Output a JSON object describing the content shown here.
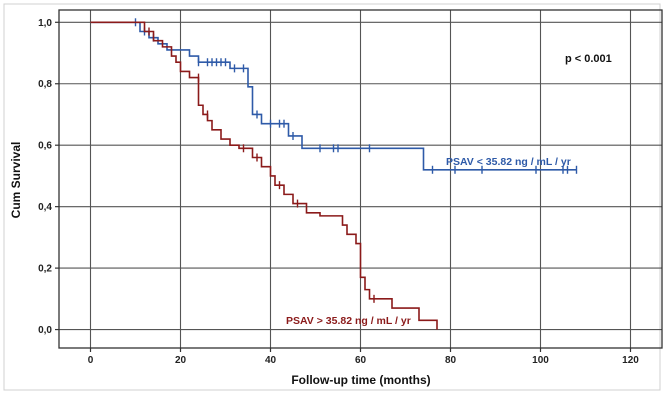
{
  "chart_data": {
    "type": "line",
    "subtype": "kaplan-meier-step",
    "xlabel": "Follow-up time (months)",
    "ylabel": "Cum Survival",
    "xlim": [
      -7,
      127
    ],
    "ylim": [
      -0.06,
      1.04
    ],
    "x_ticks": [
      0,
      20,
      40,
      60,
      80,
      100,
      120
    ],
    "x_tick_labels": [
      "0",
      "20",
      "40",
      "60",
      "80",
      "100",
      "120"
    ],
    "y_ticks": [
      0.0,
      0.2,
      0.4,
      0.6,
      0.8,
      1.0
    ],
    "y_tick_labels": [
      "0,0",
      "0,2",
      "0,4",
      "0,6",
      "0,8",
      "1,0"
    ],
    "grid": true,
    "annotation": "p < 0.001",
    "series": [
      {
        "name": "PSAV < 35.82 ng / mL / yr",
        "color": "#2e5aa8",
        "steps": [
          [
            0,
            1.0
          ],
          [
            11,
            0.97
          ],
          [
            13,
            0.95
          ],
          [
            15,
            0.93
          ],
          [
            17,
            0.91
          ],
          [
            22,
            0.89
          ],
          [
            24,
            0.87
          ],
          [
            31,
            0.85
          ],
          [
            35,
            0.79
          ],
          [
            36,
            0.7
          ],
          [
            38,
            0.67
          ],
          [
            44,
            0.63
          ],
          [
            47,
            0.59
          ],
          [
            74,
            0.52
          ],
          [
            108,
            0.52
          ]
        ],
        "censored": [
          [
            10,
            1.0
          ],
          [
            12,
            0.97
          ],
          [
            14,
            0.95
          ],
          [
            24,
            0.87
          ],
          [
            26,
            0.87
          ],
          [
            27,
            0.87
          ],
          [
            28,
            0.87
          ],
          [
            29,
            0.87
          ],
          [
            30,
            0.87
          ],
          [
            32,
            0.85
          ],
          [
            34,
            0.85
          ],
          [
            37,
            0.7
          ],
          [
            40,
            0.67
          ],
          [
            42,
            0.67
          ],
          [
            43,
            0.67
          ],
          [
            45,
            0.63
          ],
          [
            51,
            0.59
          ],
          [
            54,
            0.59
          ],
          [
            55,
            0.59
          ],
          [
            62,
            0.59
          ],
          [
            76,
            0.52
          ],
          [
            81,
            0.52
          ],
          [
            87,
            0.52
          ],
          [
            99,
            0.52
          ],
          [
            105,
            0.52
          ],
          [
            106,
            0.52
          ],
          [
            108,
            0.52
          ]
        ]
      },
      {
        "name": "PSAV > 35.82 ng / mL / yr",
        "color": "#8b1a1a",
        "steps": [
          [
            0,
            1.0
          ],
          [
            12,
            0.97
          ],
          [
            14,
            0.94
          ],
          [
            16,
            0.92
          ],
          [
            18,
            0.89
          ],
          [
            19,
            0.87
          ],
          [
            20,
            0.84
          ],
          [
            22,
            0.82
          ],
          [
            24,
            0.73
          ],
          [
            25,
            0.7
          ],
          [
            26,
            0.68
          ],
          [
            27,
            0.65
          ],
          [
            29,
            0.62
          ],
          [
            31,
            0.6
          ],
          [
            33,
            0.59
          ],
          [
            36,
            0.56
          ],
          [
            38,
            0.53
          ],
          [
            40,
            0.5
          ],
          [
            41,
            0.47
          ],
          [
            43,
            0.44
          ],
          [
            45,
            0.41
          ],
          [
            48,
            0.38
          ],
          [
            51,
            0.37
          ],
          [
            56,
            0.34
          ],
          [
            57,
            0.31
          ],
          [
            59,
            0.28
          ],
          [
            60,
            0.17
          ],
          [
            61,
            0.13
          ],
          [
            62,
            0.1
          ],
          [
            67,
            0.07
          ],
          [
            73,
            0.03
          ],
          [
            77,
            0.0
          ]
        ],
        "censored": [
          [
            13,
            0.97
          ],
          [
            24,
            0.82
          ],
          [
            26,
            0.7
          ],
          [
            34,
            0.59
          ],
          [
            37,
            0.56
          ],
          [
            42,
            0.47
          ],
          [
            46,
            0.41
          ],
          [
            63,
            0.1
          ]
        ]
      }
    ]
  }
}
